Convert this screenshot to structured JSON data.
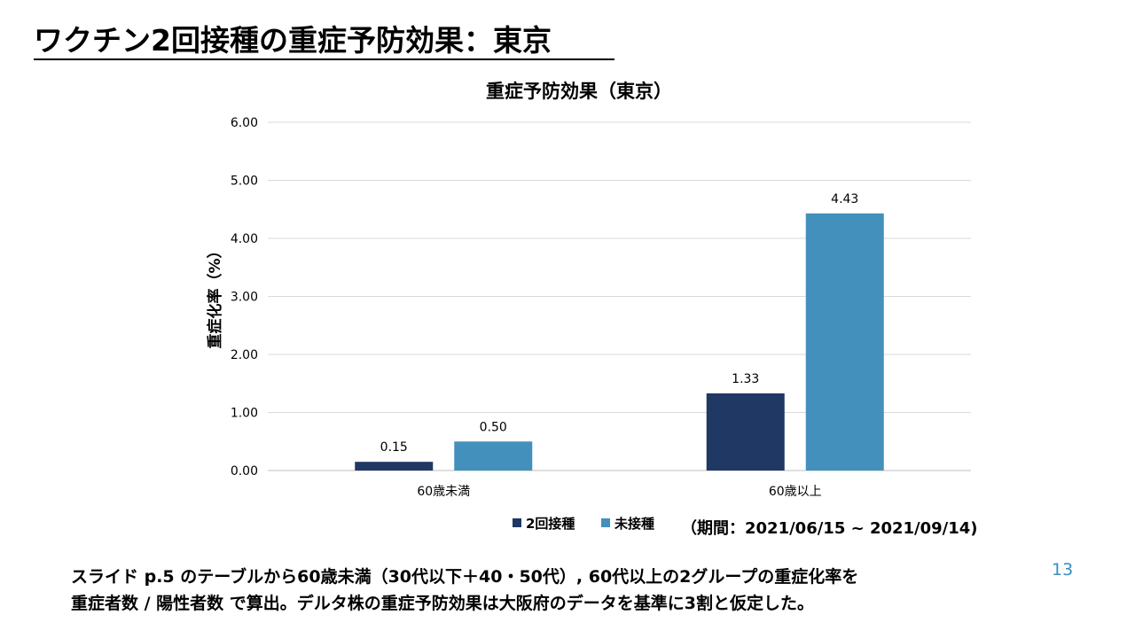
{
  "slide": {
    "title": "ワクチン2回接種の重症予防効果：東京",
    "period": "（期間：2021/06/15 ~ 2021/09/14)",
    "footnote_line1": "スライド p.5 のテーブルから60歳未満（30代以下＋40・50代）, 60代以上の2グループの重症化率を",
    "footnote_line2": "重症者数 / 陽性者数 で算出。デルタ株の重症予防効果は大阪府のデータを基準に3割と仮定した。",
    "page_number": "13"
  },
  "chart_data": {
    "type": "bar",
    "title": "重症予防効果（東京）",
    "ylabel": "重症化率（%）",
    "xlabel": "",
    "categories": [
      "60歳未満",
      "60歳以上"
    ],
    "series": [
      {
        "name": "2回接種",
        "values": [
          0.15,
          1.33
        ],
        "labels": [
          "0.15",
          "1.33"
        ],
        "color": "#1f3864"
      },
      {
        "name": "未接種",
        "values": [
          0.5,
          4.43
        ],
        "labels": [
          "0.50",
          "4.43"
        ],
        "color": "#4490bc"
      }
    ],
    "ylim": [
      0,
      6
    ],
    "yticks": [
      "0.00",
      "1.00",
      "2.00",
      "3.00",
      "4.00",
      "5.00",
      "6.00"
    ],
    "grid": true,
    "legend_position": "bottom"
  }
}
